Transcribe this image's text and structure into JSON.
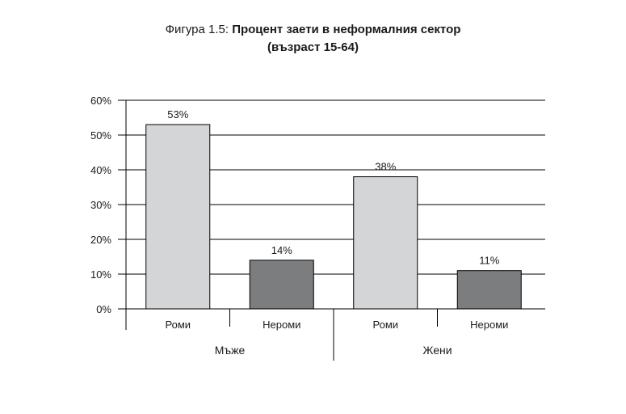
{
  "title": {
    "prefix": "Фигура 1.5: ",
    "main": "Процент заети в неформалния сектор",
    "subtitle": "(възраст 15-64)"
  },
  "chart_data": {
    "type": "bar",
    "groups": [
      {
        "label": "Мъже",
        "categories": [
          "Роми",
          "Нероми"
        ],
        "values": [
          53,
          14
        ],
        "labels": [
          "53%",
          "14%"
        ]
      },
      {
        "label": "Жени",
        "categories": [
          "Роми",
          "Нероми"
        ],
        "values": [
          38,
          11
        ],
        "labels": [
          "38%",
          "11%"
        ]
      }
    ],
    "series_colors": {
      "Роми": "#d4d5d7",
      "Нероми": "#7c7d7f"
    },
    "yticks": [
      "0%",
      "10%",
      "20%",
      "30%",
      "40%",
      "50%",
      "60%"
    ],
    "ylim": [
      0,
      60
    ],
    "grid": true,
    "legend": "none"
  }
}
